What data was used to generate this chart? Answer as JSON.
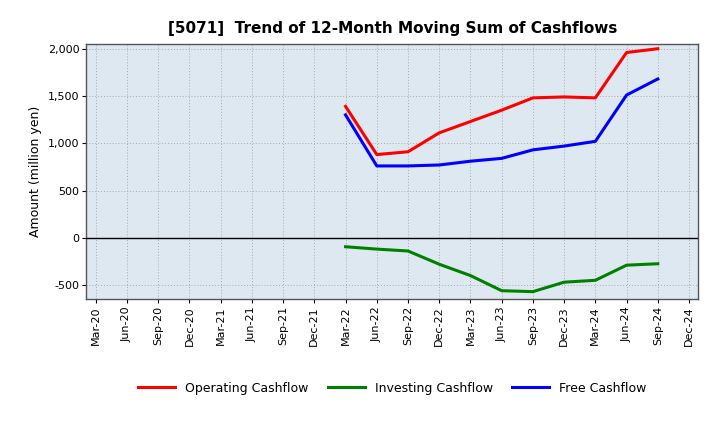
{
  "title": "[5071]  Trend of 12-Month Moving Sum of Cashflows",
  "ylabel": "Amount (million yen)",
  "ylim": [
    -650,
    2050
  ],
  "yticks": [
    -500,
    0,
    500,
    1000,
    1500,
    2000
  ],
  "x_labels": [
    "Mar-20",
    "Jun-20",
    "Sep-20",
    "Dec-20",
    "Mar-21",
    "Jun-21",
    "Sep-21",
    "Dec-21",
    "Mar-22",
    "Jun-22",
    "Sep-22",
    "Dec-22",
    "Mar-23",
    "Jun-23",
    "Sep-23",
    "Dec-23",
    "Mar-24",
    "Jun-24",
    "Sep-24",
    "Dec-24"
  ],
  "operating": {
    "x_indices": [
      8,
      9,
      10,
      11,
      12,
      13,
      14,
      15,
      16,
      17,
      18
    ],
    "values": [
      1390,
      880,
      910,
      1110,
      1230,
      1350,
      1480,
      1490,
      1480,
      1960,
      2000
    ],
    "color": "#ff0000",
    "label": "Operating Cashflow"
  },
  "investing": {
    "x_indices": [
      8,
      9,
      10,
      11,
      12,
      13,
      14,
      15,
      16,
      17,
      18
    ],
    "values": [
      -95,
      -120,
      -140,
      -280,
      -400,
      -560,
      -570,
      -470,
      -450,
      -290,
      -275
    ],
    "color": "#008000",
    "label": "Investing Cashflow"
  },
  "free": {
    "x_indices": [
      8,
      9,
      10,
      11,
      12,
      13,
      14,
      15,
      16,
      17,
      18
    ],
    "values": [
      1300,
      760,
      760,
      770,
      810,
      840,
      930,
      970,
      1020,
      1510,
      1680
    ],
    "color": "#0000ff",
    "label": "Free Cashflow"
  },
  "plot_bg_color": "#dde8f0",
  "outer_bg_color": "#ffffff",
  "grid_color": "#aaaaaa",
  "linewidth": 2.2,
  "title_fontsize": 11,
  "ylabel_fontsize": 9,
  "tick_fontsize": 8,
  "legend_fontsize": 9
}
